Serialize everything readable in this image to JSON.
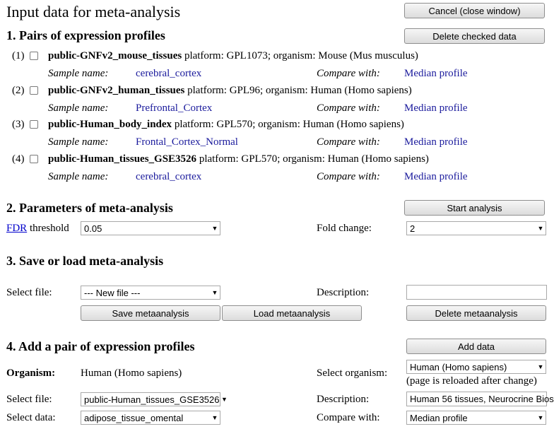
{
  "page_title": "Input data for meta-analysis",
  "buttons": {
    "cancel": "Cancel (close window)",
    "delete_checked": "Delete checked data",
    "start_analysis": "Start analysis",
    "save": "Save metaanalysis",
    "load": "Load metaanalysis",
    "delete_meta": "Delete metaanalysis",
    "add_data": "Add data"
  },
  "section1": {
    "heading": "1. Pairs of expression profiles",
    "sample_label": "Sample name:",
    "compare_label": "Compare with:",
    "pairs": [
      {
        "index": "(1)",
        "name": "public-GNFv2_mouse_tissues",
        "details": " platform: GPL1073; organism: Mouse (Mus musculus)",
        "sample": "cerebral_cortex",
        "compare": "Median profile"
      },
      {
        "index": "(2)",
        "name": "public-GNFv2_human_tissues",
        "details": " platform: GPL96; organism: Human (Homo sapiens)",
        "sample": "Prefrontal_Cortex",
        "compare": "Median profile"
      },
      {
        "index": "(3)",
        "name": "public-Human_body_index",
        "details": " platform: GPL570; organism: Human (Homo sapiens)",
        "sample": "Frontal_Cortex_Normal",
        "compare": "Median profile"
      },
      {
        "index": "(4)",
        "name": "public-Human_tissues_GSE3526",
        "details": " platform: GPL570; organism: Human (Homo sapiens)",
        "sample": "cerebral_cortex",
        "compare": "Median profile"
      }
    ]
  },
  "section2": {
    "heading": "2. Parameters of meta-analysis",
    "fdr_link": "FDR",
    "fdr_text": " threshold",
    "fdr_value": "0.05",
    "fold_label": "Fold change:",
    "fold_value": "2"
  },
  "section3": {
    "heading": "3. Save or load meta-analysis",
    "select_file_label": "Select file:",
    "select_file_value": "--- New file ---",
    "description_label": "Description:",
    "description_value": ""
  },
  "section4": {
    "heading": "4. Add a pair of expression profiles",
    "organism_label": "Organism:",
    "organism_value": "Human (Homo sapiens)",
    "select_organism_label": "Select organism:",
    "select_organism_value": "Human (Homo sapiens)",
    "reload_note": "(page is reloaded after change)",
    "select_file_label": "Select file:",
    "select_file_value": "public-Human_tissues_GSE3526",
    "description_label": "Description:",
    "description_value": "Human 56 tissues, Neurocrine Bios",
    "select_data_label": "Select data:",
    "select_data_value": "adipose_tissue_omental",
    "compare_label": "Compare with:",
    "compare_value": "Median profile"
  }
}
